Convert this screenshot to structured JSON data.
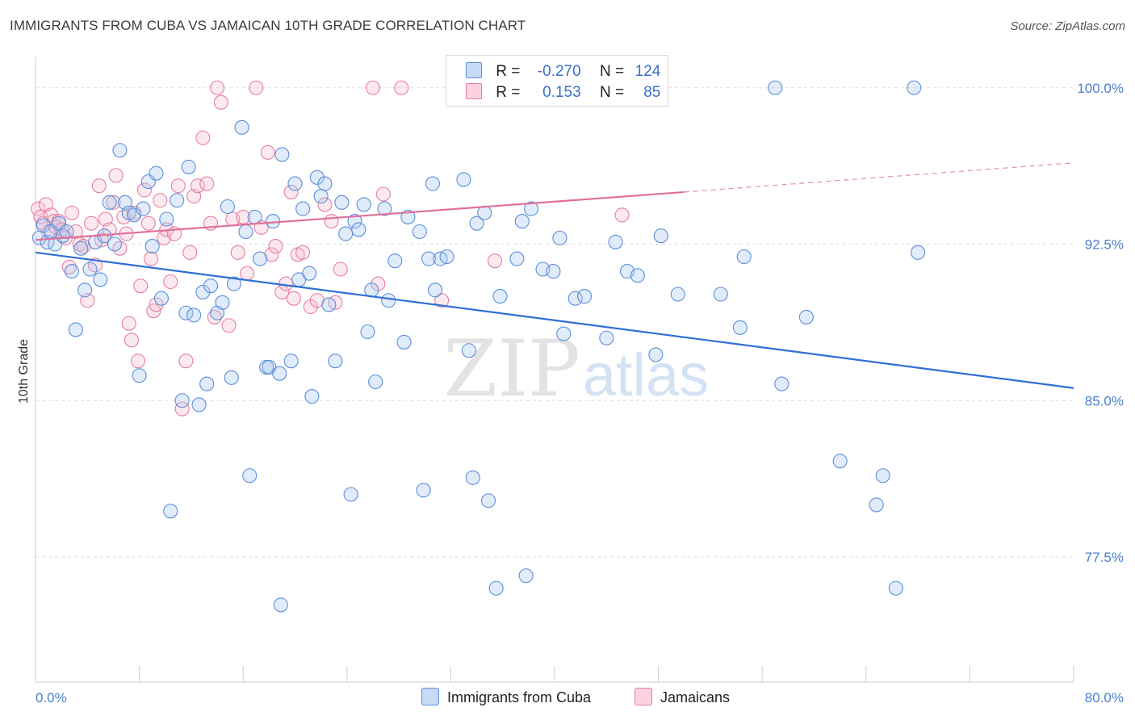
{
  "header": {
    "title": "IMMIGRANTS FROM CUBA VS JAMAICAN 10TH GRADE CORRELATION CHART",
    "source": "Source: ZipAtlas.com"
  },
  "watermark": {
    "zip": "ZIP",
    "atlas": "atlas"
  },
  "legend": {
    "rows": [
      {
        "r_label": "R =",
        "r_value": "-0.270",
        "n_label": "N =",
        "n_value": "124",
        "color": "#8ab4ea"
      },
      {
        "r_label": "R =",
        "r_value": "0.153",
        "n_label": "N =",
        "n_value": "85",
        "color": "#f4a8c0"
      }
    ]
  },
  "chart_data": {
    "type": "scatter",
    "title": "IMMIGRANTS FROM CUBA VS JAMAICAN 10TH GRADE CORRELATION CHART",
    "xlabel": "",
    "ylabel": "10th Grade",
    "xlim": [
      0,
      80
    ],
    "ylim": [
      71.5,
      101.5
    ],
    "x_tick_labels": [
      "0.0%",
      "80.0%"
    ],
    "y_ticks": [
      77.5,
      85.0,
      92.5,
      100.0
    ],
    "y_tick_labels": [
      "77.5%",
      "85.0%",
      "92.5%",
      "100.0%"
    ],
    "grid": "horizontal dashed",
    "legend_placement": "top-center",
    "colors": {
      "cuba_fill": "#a9c8f0",
      "cuba_stroke": "#5b8fd8",
      "cuba_line": "#2f6fd6",
      "jam_fill": "#f7bfd0",
      "jam_stroke": "#e57fa2",
      "jam_line": "#e0709a",
      "tick": "#4a7fd1",
      "grid": "#dddddd"
    },
    "series": [
      {
        "name": "Immigrants from Cuba",
        "trend": {
          "x": [
            0,
            80
          ],
          "y": [
            92.1,
            85.6
          ]
        },
        "points": [
          [
            0.3,
            92.8
          ],
          [
            0.6,
            93.4
          ],
          [
            0.9,
            92.6
          ],
          [
            1.2,
            93.1
          ],
          [
            1.5,
            92.5
          ],
          [
            1.8,
            93.5
          ],
          [
            2.1,
            92.9
          ],
          [
            2.4,
            93.1
          ],
          [
            2.8,
            91.2
          ],
          [
            3.1,
            88.4
          ],
          [
            3.5,
            92.3
          ],
          [
            3.8,
            90.3
          ],
          [
            4.2,
            91.3
          ],
          [
            4.6,
            92.6
          ],
          [
            5.0,
            90.8
          ],
          [
            5.3,
            92.9
          ],
          [
            5.7,
            94.5
          ],
          [
            6.1,
            92.5
          ],
          [
            6.5,
            97.0
          ],
          [
            6.9,
            94.5
          ],
          [
            7.2,
            94.0
          ],
          [
            7.6,
            93.9
          ],
          [
            8.0,
            86.2
          ],
          [
            8.3,
            94.2
          ],
          [
            8.7,
            95.5
          ],
          [
            9.0,
            92.4
          ],
          [
            9.3,
            95.9
          ],
          [
            9.7,
            89.9
          ],
          [
            10.1,
            93.7
          ],
          [
            10.4,
            79.7
          ],
          [
            10.9,
            94.6
          ],
          [
            11.3,
            85.0
          ],
          [
            11.6,
            89.2
          ],
          [
            11.8,
            96.2
          ],
          [
            12.2,
            89.1
          ],
          [
            12.6,
            84.8
          ],
          [
            12.9,
            90.2
          ],
          [
            13.2,
            85.8
          ],
          [
            13.5,
            90.5
          ],
          [
            14.0,
            89.2
          ],
          [
            14.4,
            89.7
          ],
          [
            14.8,
            94.3
          ],
          [
            15.1,
            86.1
          ],
          [
            15.3,
            90.6
          ],
          [
            15.9,
            98.1
          ],
          [
            16.2,
            93.1
          ],
          [
            16.5,
            81.4
          ],
          [
            16.9,
            93.8
          ],
          [
            17.3,
            91.8
          ],
          [
            17.8,
            86.6
          ],
          [
            18.0,
            86.6
          ],
          [
            18.3,
            93.6
          ],
          [
            18.8,
            86.3
          ],
          [
            19.0,
            96.8
          ],
          [
            18.9,
            75.2
          ],
          [
            19.7,
            86.9
          ],
          [
            20.0,
            95.4
          ],
          [
            20.3,
            90.8
          ],
          [
            20.6,
            94.2
          ],
          [
            21.1,
            91.1
          ],
          [
            21.3,
            85.2
          ],
          [
            21.7,
            95.7
          ],
          [
            22.0,
            94.8
          ],
          [
            22.3,
            95.4
          ],
          [
            22.6,
            89.6
          ],
          [
            23.1,
            86.9
          ],
          [
            23.6,
            94.5
          ],
          [
            23.9,
            93.0
          ],
          [
            24.3,
            80.5
          ],
          [
            24.6,
            93.6
          ],
          [
            24.9,
            93.2
          ],
          [
            25.3,
            94.4
          ],
          [
            25.6,
            88.3
          ],
          [
            25.9,
            90.3
          ],
          [
            26.2,
            85.9
          ],
          [
            26.9,
            94.2
          ],
          [
            27.2,
            89.8
          ],
          [
            27.7,
            91.7
          ],
          [
            28.4,
            87.8
          ],
          [
            28.7,
            93.8
          ],
          [
            29.6,
            93.1
          ],
          [
            29.9,
            80.7
          ],
          [
            30.3,
            91.8
          ],
          [
            30.6,
            95.4
          ],
          [
            30.8,
            90.3
          ],
          [
            31.2,
            91.8
          ],
          [
            31.7,
            91.9
          ],
          [
            33.0,
            95.6
          ],
          [
            33.4,
            87.4
          ],
          [
            33.7,
            81.3
          ],
          [
            34.0,
            93.5
          ],
          [
            34.6,
            94.0
          ],
          [
            34.9,
            80.2
          ],
          [
            35.5,
            76.0
          ],
          [
            35.8,
            90.0
          ],
          [
            37.1,
            91.8
          ],
          [
            37.5,
            93.6
          ],
          [
            37.8,
            76.6
          ],
          [
            38.2,
            94.2
          ],
          [
            39.1,
            91.3
          ],
          [
            39.9,
            91.2
          ],
          [
            40.4,
            92.8
          ],
          [
            40.7,
            88.2
          ],
          [
            41.6,
            89.9
          ],
          [
            42.3,
            90.0
          ],
          [
            44.0,
            88.0
          ],
          [
            44.7,
            92.6
          ],
          [
            45.6,
            91.2
          ],
          [
            46.4,
            91.0
          ],
          [
            47.8,
            87.2
          ],
          [
            48.2,
            92.9
          ],
          [
            49.5,
            90.1
          ],
          [
            52.8,
            90.1
          ],
          [
            54.3,
            88.5
          ],
          [
            54.6,
            91.9
          ],
          [
            57.0,
            100.0
          ],
          [
            57.5,
            85.8
          ],
          [
            59.4,
            89.0
          ],
          [
            62.0,
            82.1
          ],
          [
            64.8,
            80.0
          ],
          [
            65.3,
            81.4
          ],
          [
            66.3,
            76.0
          ],
          [
            67.7,
            100.0
          ],
          [
            68.0,
            92.1
          ]
        ]
      },
      {
        "name": "Jamaicans",
        "trend_solid": {
          "x": [
            0,
            50
          ],
          "y": [
            92.7,
            95.0
          ]
        },
        "trend_dashed": {
          "x": [
            50,
            80
          ],
          "y": [
            95.0,
            96.4
          ]
        },
        "points": [
          [
            0.2,
            94.2
          ],
          [
            0.4,
            93.8
          ],
          [
            0.6,
            93.5
          ],
          [
            0.8,
            94.4
          ],
          [
            1.0,
            93.1
          ],
          [
            1.2,
            93.9
          ],
          [
            1.4,
            93.6
          ],
          [
            1.6,
            93.3
          ],
          [
            1.8,
            93.6
          ],
          [
            2.0,
            93.2
          ],
          [
            2.3,
            92.8
          ],
          [
            2.6,
            91.4
          ],
          [
            2.8,
            94.0
          ],
          [
            3.1,
            93.1
          ],
          [
            3.4,
            92.5
          ],
          [
            3.7,
            92.4
          ],
          [
            4.0,
            89.8
          ],
          [
            4.3,
            93.5
          ],
          [
            4.6,
            91.5
          ],
          [
            4.9,
            95.3
          ],
          [
            5.1,
            92.7
          ],
          [
            5.4,
            93.7
          ],
          [
            5.7,
            93.2
          ],
          [
            6.0,
            94.5
          ],
          [
            6.2,
            95.8
          ],
          [
            6.5,
            92.3
          ],
          [
            6.8,
            93.8
          ],
          [
            7.0,
            93.0
          ],
          [
            7.2,
            88.7
          ],
          [
            7.4,
            87.9
          ],
          [
            7.6,
            94.0
          ],
          [
            7.9,
            86.9
          ],
          [
            8.1,
            90.5
          ],
          [
            8.4,
            95.1
          ],
          [
            8.7,
            93.5
          ],
          [
            8.9,
            91.8
          ],
          [
            9.1,
            89.3
          ],
          [
            9.3,
            89.6
          ],
          [
            9.6,
            94.6
          ],
          [
            9.9,
            92.8
          ],
          [
            10.1,
            93.2
          ],
          [
            10.4,
            90.7
          ],
          [
            10.7,
            93.0
          ],
          [
            11.0,
            95.3
          ],
          [
            11.3,
            84.6
          ],
          [
            11.6,
            86.9
          ],
          [
            11.9,
            92.1
          ],
          [
            12.2,
            94.8
          ],
          [
            12.5,
            95.3
          ],
          [
            12.9,
            97.6
          ],
          [
            13.2,
            95.4
          ],
          [
            13.5,
            93.5
          ],
          [
            13.8,
            89.0
          ],
          [
            14.0,
            100.0
          ],
          [
            14.3,
            99.3
          ],
          [
            14.9,
            88.6
          ],
          [
            15.2,
            93.7
          ],
          [
            15.6,
            92.1
          ],
          [
            16.0,
            93.8
          ],
          [
            16.3,
            91.1
          ],
          [
            17.0,
            100.0
          ],
          [
            17.4,
            93.3
          ],
          [
            17.9,
            96.9
          ],
          [
            18.2,
            92.0
          ],
          [
            18.5,
            92.4
          ],
          [
            19.0,
            90.2
          ],
          [
            19.3,
            90.6
          ],
          [
            19.7,
            95.0
          ],
          [
            19.9,
            89.9
          ],
          [
            20.2,
            92.0
          ],
          [
            20.6,
            92.1
          ],
          [
            21.2,
            89.5
          ],
          [
            21.7,
            89.8
          ],
          [
            22.3,
            94.4
          ],
          [
            22.8,
            93.6
          ],
          [
            23.1,
            89.7
          ],
          [
            23.5,
            91.3
          ],
          [
            26.0,
            100.0
          ],
          [
            26.4,
            90.6
          ],
          [
            26.8,
            94.9
          ],
          [
            28.2,
            100.0
          ],
          [
            31.3,
            89.8
          ],
          [
            35.4,
            91.7
          ],
          [
            42.4,
            100.0
          ],
          [
            45.2,
            93.9
          ]
        ]
      }
    ]
  },
  "bottom_legend": {
    "items": [
      {
        "label": "Immigrants from Cuba",
        "color": "#a9c8f0"
      },
      {
        "label": "Jamaicans",
        "color": "#f7bfd0"
      }
    ]
  }
}
